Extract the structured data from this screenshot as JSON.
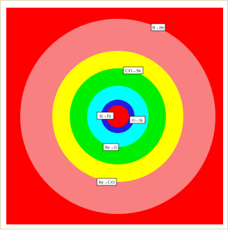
{
  "colors": {
    "frame_border": "#e0d7b8",
    "background_fill": "#ff0000",
    "shell_h_he": "#ff0000",
    "shell_he_co": "#f88080",
    "shell_co_ne": "#ffff00",
    "shell_ne_o": "#00ee00",
    "shell_o_si": "#00ffff",
    "shell_si_fe": "#1f1fe0",
    "core": "#ff0000",
    "label_box": "#ffffff",
    "label_text": "#000000"
  },
  "diagram": {
    "labels": {
      "h_he": "H→He",
      "c_o_ne": "C/O→Ne",
      "si_fe": "Si→Fe",
      "o_si": "O→Si",
      "ne_o": "Ne→O",
      "he_co": "He→C/O"
    }
  }
}
